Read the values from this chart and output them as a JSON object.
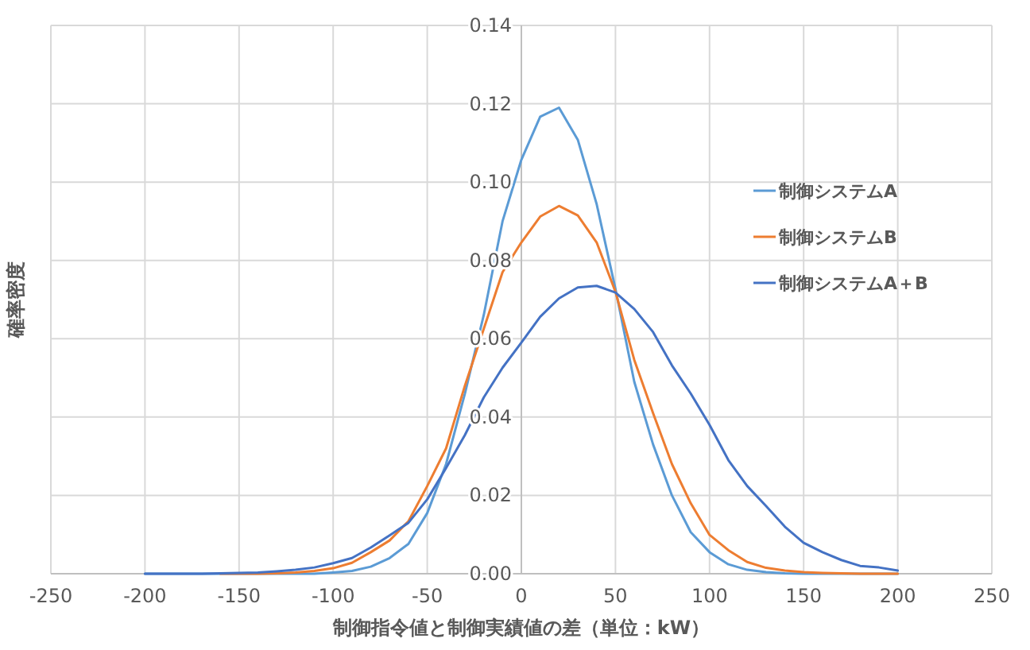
{
  "chart_data": {
    "type": "line",
    "xlabel": "制御指令値と制御実績値の差（単位：kW）",
    "ylabel": "確率密度",
    "x": [
      -200,
      -190,
      -180,
      -170,
      -160,
      -150,
      -140,
      -130,
      -120,
      -110,
      -100,
      -90,
      -80,
      -70,
      -60,
      -50,
      -40,
      -30,
      -20,
      -10,
      0,
      10,
      20,
      30,
      40,
      50,
      60,
      70,
      80,
      90,
      100,
      110,
      120,
      130,
      140,
      150,
      160,
      170,
      180,
      190,
      200
    ],
    "series": [
      {
        "name": "制御システムA",
        "color": "#5b9bd5",
        "values": [
          0,
          0,
          0,
          0,
          0,
          0,
          0,
          0,
          0,
          0,
          0.0003,
          0.0007,
          0.0018,
          0.004,
          0.0076,
          0.0155,
          0.028,
          0.046,
          0.066,
          0.09,
          0.1057,
          0.1167,
          0.119,
          0.1108,
          0.0944,
          0.0727,
          0.049,
          0.033,
          0.02,
          0.0106,
          0.0055,
          0.0024,
          0.001,
          0.0004,
          0.0001,
          0,
          0,
          0,
          0,
          0,
          0
        ]
      },
      {
        "name": "制御システムB",
        "color": "#ed7d31",
        "values": [
          null,
          null,
          null,
          null,
          0,
          0,
          0,
          0.0001,
          0.0003,
          0.0007,
          0.0014,
          0.0028,
          0.0055,
          0.0085,
          0.0134,
          0.0224,
          0.032,
          0.048,
          0.0625,
          0.077,
          0.0846,
          0.0912,
          0.0939,
          0.0915,
          0.0846,
          0.072,
          0.0546,
          0.041,
          0.028,
          0.018,
          0.0099,
          0.006,
          0.003,
          0.0015,
          0.0008,
          0.0004,
          0.0002,
          0.0001,
          0,
          0,
          0
        ]
      },
      {
        "name": "制御システムA＋B",
        "color": "#4472c4",
        "values": [
          0,
          0,
          0,
          0,
          0.0001,
          0.0002,
          0.0003,
          0.0006,
          0.001,
          0.0016,
          0.0027,
          0.004,
          0.0067,
          0.0098,
          0.013,
          0.019,
          0.027,
          0.0354,
          0.045,
          0.0526,
          0.059,
          0.0656,
          0.0703,
          0.0731,
          0.0735,
          0.0718,
          0.0676,
          0.0617,
          0.0532,
          0.046,
          0.038,
          0.029,
          0.0224,
          0.0173,
          0.012,
          0.0079,
          0.0055,
          0.0035,
          0.002,
          0.0016,
          0.0008
        ]
      }
    ],
    "xlim": [
      -250,
      250
    ],
    "xticks": [
      -250,
      -200,
      -150,
      -100,
      -50,
      0,
      50,
      100,
      150,
      200,
      250
    ],
    "ylim": [
      0,
      0.14
    ],
    "yticks": [
      {
        "value": 0,
        "label": "0.00"
      },
      {
        "value": 0.02,
        "label": "0.02"
      },
      {
        "value": 0.04,
        "label": "0.04"
      },
      {
        "value": 0.06,
        "label": "0.06"
      },
      {
        "value": 0.08,
        "label": "0.08"
      },
      {
        "value": 0.1,
        "label": "0.10"
      },
      {
        "value": 0.12,
        "label": "0.12"
      },
      {
        "value": 0.14,
        "label": "0.14"
      }
    ],
    "grid": true,
    "legend": "right",
    "marker": "none",
    "line_style": "solid"
  }
}
